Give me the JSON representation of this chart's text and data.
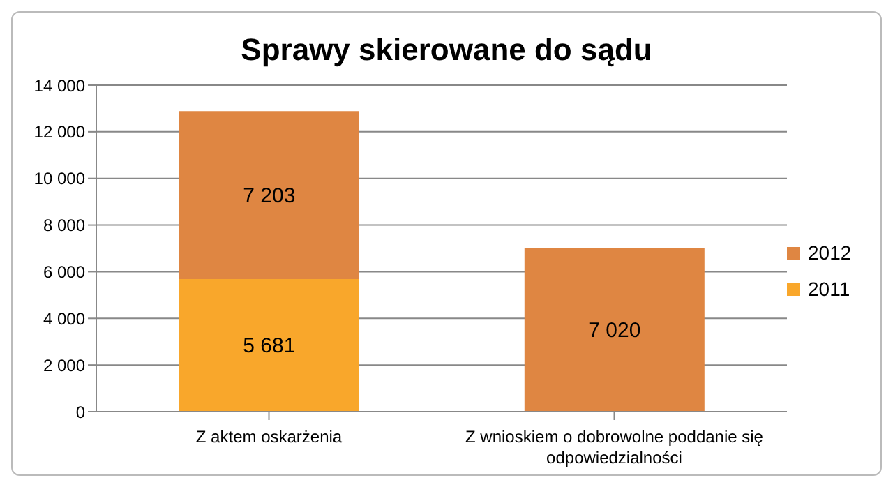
{
  "chart_data": {
    "type": "bar",
    "title": "Sprawy skierowane do sądu",
    "categories": [
      "Z aktem oskarżenia",
      "Z wnioskiem o dobrowolne poddanie się odpowiedzialności"
    ],
    "stacked": true,
    "series": [
      {
        "name": "2011",
        "color": "#f9a72b",
        "values": [
          5681,
          null
        ],
        "value_labels": [
          "5 681",
          null
        ]
      },
      {
        "name": "2012",
        "color": "#df8642",
        "values": [
          7203,
          7020
        ],
        "value_labels": [
          "7 203",
          "7 020"
        ]
      }
    ],
    "ylim": [
      0,
      14000
    ],
    "yticks": [
      {
        "value": 0,
        "label": "0"
      },
      {
        "value": 2000,
        "label": "2 000"
      },
      {
        "value": 4000,
        "label": "4 000"
      },
      {
        "value": 6000,
        "label": "6 000"
      },
      {
        "value": 8000,
        "label": "8 000"
      },
      {
        "value": 10000,
        "label": "10 000"
      },
      {
        "value": 12000,
        "label": "12 000"
      },
      {
        "value": 14000,
        "label": "14 000"
      }
    ],
    "grid": "y",
    "legend": "right"
  }
}
